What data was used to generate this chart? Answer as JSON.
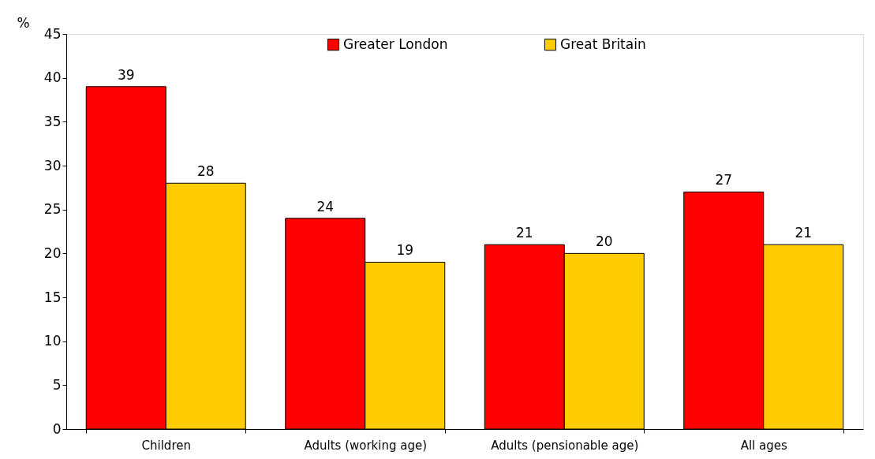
{
  "chart_data": {
    "type": "bar",
    "ylabel": "%",
    "categories": [
      "Children",
      "Adults (working age)",
      "Adults (pensionable age)",
      "All ages"
    ],
    "series": [
      {
        "name": "Greater London",
        "color": "#ff0000",
        "values": [
          39,
          24,
          21,
          27
        ]
      },
      {
        "name": "Great Britain",
        "color": "#ffcc00",
        "values": [
          28,
          19,
          20,
          21
        ]
      }
    ],
    "ylim": [
      0,
      45
    ],
    "yticks": [
      0,
      5,
      10,
      15,
      20,
      25,
      30,
      35,
      40,
      45
    ],
    "data_labels": true,
    "legend": "top",
    "grid": false
  }
}
